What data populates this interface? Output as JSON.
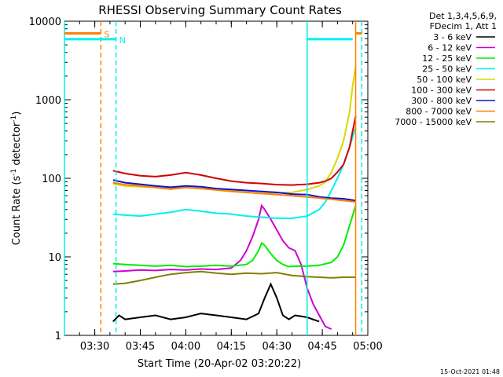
{
  "chart_data": {
    "type": "line",
    "title": "RHESSI Observing Summary Count Rates",
    "xlabel": "Start Time (20-Apr-02 03:20:22)",
    "ylabel_main": "Count Rate (s",
    "ylabel_sup1": "-1",
    "ylabel_mid": " detector",
    "ylabel_sup2": "-1",
    "ylabel_end": ")",
    "footer_date": "15-Oct-2021 01:48",
    "yscale": "log",
    "xlim": [
      0,
      100
    ],
    "ylim": [
      1,
      10000
    ],
    "x_ticks": [
      {
        "x": 10,
        "label": "03:30"
      },
      {
        "x": 25,
        "label": "03:45"
      },
      {
        "x": 40,
        "label": "04:00"
      },
      {
        "x": 55,
        "label": "04:15"
      },
      {
        "x": 70,
        "label": "04:30"
      },
      {
        "x": 85,
        "label": "04:45"
      },
      {
        "x": 100,
        "label": "05:00"
      }
    ],
    "y_ticks": [
      {
        "y": 1,
        "label": "1"
      },
      {
        "y": 10,
        "label": "10"
      },
      {
        "y": 100,
        "label": "100"
      },
      {
        "y": 1000,
        "label": "1000"
      },
      {
        "y": 10000,
        "label": "10000"
      }
    ],
    "legend_header": [
      "Det 1,3,4,5,6,9,",
      "FDecim 1, Att 1"
    ],
    "series": [
      {
        "name": "3 - 6 keV",
        "color": "#000000",
        "x": [
          16,
          18,
          20,
          25,
          30,
          35,
          40,
          45,
          50,
          55,
          60,
          64,
          66,
          68,
          70,
          72,
          74,
          76,
          80,
          84
        ],
        "y": [
          1.5,
          1.8,
          1.6,
          1.7,
          1.8,
          1.6,
          1.7,
          1.9,
          1.8,
          1.7,
          1.6,
          1.9,
          3,
          4.5,
          3,
          1.8,
          1.6,
          1.8,
          1.7,
          1.5
        ]
      },
      {
        "name": "6 - 12 keV",
        "color": "#d000d0",
        "x": [
          16,
          20,
          25,
          30,
          35,
          40,
          45,
          50,
          55,
          58,
          60,
          62,
          64,
          65,
          66,
          68,
          70,
          72,
          74,
          76,
          78,
          80,
          82,
          84,
          86,
          88
        ],
        "y": [
          6.5,
          6.6,
          6.8,
          6.7,
          6.9,
          6.8,
          7,
          6.9,
          7.2,
          9,
          12,
          18,
          30,
          45,
          40,
          30,
          22,
          16,
          13,
          12,
          8,
          4,
          2.5,
          1.8,
          1.3,
          1.2
        ]
      },
      {
        "name": "12 - 25 keV",
        "color": "#00ee00",
        "x": [
          16,
          20,
          25,
          30,
          35,
          40,
          45,
          50,
          55,
          60,
          62,
          64,
          65,
          66,
          68,
          70,
          72,
          74,
          76,
          80,
          84,
          88,
          90,
          92,
          94,
          96
        ],
        "y": [
          8.2,
          8,
          7.8,
          7.6,
          7.8,
          7.5,
          7.6,
          7.8,
          7.6,
          8,
          9,
          12,
          15,
          14,
          11,
          9,
          8,
          7.5,
          7.6,
          7.6,
          7.8,
          8.5,
          10,
          14,
          25,
          45
        ]
      },
      {
        "name": "25 - 50 keV",
        "color": "#00f0f0",
        "x": [
          16,
          20,
          25,
          30,
          35,
          40,
          45,
          50,
          55,
          60,
          65,
          70,
          75,
          80,
          84,
          86,
          88,
          90,
          92,
          94,
          96
        ],
        "y": [
          35,
          34,
          33,
          35,
          37,
          40,
          38,
          36,
          35,
          33,
          32,
          31,
          31,
          33,
          40,
          50,
          70,
          100,
          150,
          250,
          450
        ]
      },
      {
        "name": "50 - 100 keV",
        "color": "#d8d800",
        "x": [
          16,
          20,
          25,
          30,
          35,
          40,
          45,
          50,
          55,
          60,
          65,
          70,
          75,
          80,
          84,
          86,
          88,
          90,
          92,
          94,
          95,
          96
        ],
        "y": [
          85,
          80,
          78,
          77,
          75,
          76,
          74,
          72,
          70,
          66,
          64,
          65,
          66,
          72,
          80,
          90,
          120,
          180,
          300,
          700,
          1500,
          2700
        ]
      },
      {
        "name": "100 - 300 keV",
        "color": "#d00000",
        "x": [
          16,
          20,
          25,
          30,
          35,
          40,
          45,
          50,
          55,
          60,
          65,
          70,
          75,
          80,
          84,
          86,
          88,
          90,
          92,
          94,
          95,
          96
        ],
        "y": [
          125,
          115,
          108,
          105,
          110,
          118,
          110,
          100,
          92,
          88,
          86,
          83,
          82,
          84,
          88,
          92,
          100,
          120,
          150,
          250,
          400,
          620
        ]
      },
      {
        "name": "300 - 800 keV",
        "color": "#1010d0",
        "x": [
          16,
          20,
          25,
          30,
          35,
          40,
          45,
          50,
          55,
          60,
          65,
          70,
          75,
          80,
          84,
          88,
          92,
          96
        ],
        "y": [
          95,
          88,
          84,
          80,
          77,
          80,
          78,
          74,
          72,
          70,
          68,
          66,
          63,
          62,
          58,
          56,
          55,
          52
        ]
      },
      {
        "name": "800 - 7000 keV",
        "color": "#ff8000",
        "x": [
          16,
          20,
          25,
          30,
          35,
          40,
          45,
          50,
          55,
          60,
          65,
          70,
          75,
          80,
          84,
          88,
          92,
          96
        ],
        "y": [
          88,
          83,
          80,
          76,
          73,
          76,
          74,
          71,
          68,
          66,
          64,
          62,
          60,
          58,
          56,
          54,
          52,
          50
        ]
      },
      {
        "name": "7000 - 15000 keV",
        "color": "#808000",
        "x": [
          16,
          20,
          25,
          30,
          35,
          40,
          45,
          50,
          55,
          60,
          65,
          70,
          75,
          80,
          84,
          88,
          92,
          96
        ],
        "y": [
          4.5,
          4.6,
          5,
          5.5,
          6,
          6.3,
          6.5,
          6.2,
          6,
          6.2,
          6.1,
          6.3,
          5.8,
          5.6,
          5.5,
          5.4,
          5.5,
          5.5
        ]
      }
    ],
    "markers": [
      {
        "label": "S",
        "color": "#ff8000",
        "x_start": 0,
        "x_end": 12,
        "y": 7000
      },
      {
        "label": "N",
        "color": "#00f0f0",
        "x_start": 0,
        "x_end": 17,
        "y": 5900
      }
    ],
    "right_flag_segments": [
      {
        "color": "#00f0f0",
        "x_start": 80,
        "x_end": 95,
        "y": 5900
      },
      {
        "color": "#ff8000",
        "x_start": 96,
        "x_end": 98,
        "y": 7000
      }
    ],
    "vertical_lines": [
      {
        "x": 0,
        "color": "#00f0f0",
        "style": "solid"
      },
      {
        "x": 12,
        "color": "#ff8000",
        "style": "dashed"
      },
      {
        "x": 17,
        "color": "#00f0f0",
        "style": "dashed"
      },
      {
        "x": 80,
        "color": "#00f0f0",
        "style": "solid"
      },
      {
        "x": 96,
        "color": "#ff8000",
        "style": "solid"
      },
      {
        "x": 98,
        "color": "#00f0f0",
        "style": "dashed"
      }
    ]
  }
}
